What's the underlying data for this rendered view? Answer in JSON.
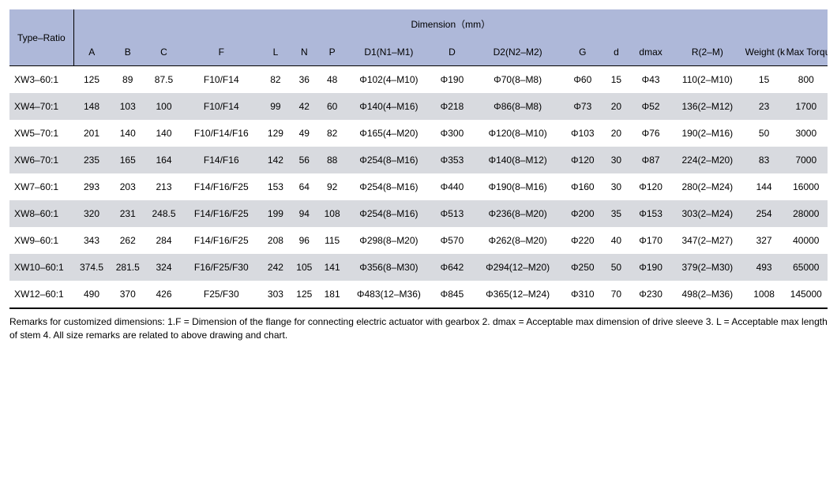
{
  "header": {
    "type_ratio": "Type–Ratio",
    "dimension_group": "Dimension（mm）",
    "cols": {
      "A": "A",
      "B": "B",
      "C": "C",
      "F": "F",
      "L": "L",
      "N": "N",
      "P": "P",
      "D1": "D1(N1–M1)",
      "D": "D",
      "D2": "D2(N2–M2)",
      "G": "G",
      "d_small": "d",
      "dmax": "dmax",
      "R": "R(2–M)",
      "Weight": "Weight (kg)",
      "Torque": "Max Torque (Nm)"
    }
  },
  "rows": [
    {
      "type": "XW3–60:1",
      "A": "125",
      "B": "89",
      "C": "87.5",
      "F": "F10/F14",
      "L": "82",
      "N": "36",
      "P": "48",
      "D1": "Φ102(4–M10)",
      "D": "Φ190",
      "D2": "Φ70(8–M8)",
      "G": "Φ60",
      "d": "15",
      "dmax": "Φ43",
      "R": "110(2–M10)",
      "Weight": "15",
      "Torque": "800"
    },
    {
      "type": "XW4–70:1",
      "A": "148",
      "B": "103",
      "C": "100",
      "F": "F10/F14",
      "L": "99",
      "N": "42",
      "P": "60",
      "D1": "Φ140(4–M16)",
      "D": "Φ218",
      "D2": "Φ86(8–M8)",
      "G": "Φ73",
      "d": "20",
      "dmax": "Φ52",
      "R": "136(2–M12)",
      "Weight": "23",
      "Torque": "1700"
    },
    {
      "type": "XW5–70:1",
      "A": "201",
      "B": "140",
      "C": "140",
      "F": "F10/F14/F16",
      "L": "129",
      "N": "49",
      "P": "82",
      "D1": "Φ165(4–M20)",
      "D": "Φ300",
      "D2": "Φ120(8–M10)",
      "G": "Φ103",
      "d": "20",
      "dmax": "Φ76",
      "R": "190(2–M16)",
      "Weight": "50",
      "Torque": "3000"
    },
    {
      "type": "XW6–70:1",
      "A": "235",
      "B": "165",
      "C": "164",
      "F": "F14/F16",
      "L": "142",
      "N": "56",
      "P": "88",
      "D1": "Φ254(8–M16)",
      "D": "Φ353",
      "D2": "Φ140(8–M12)",
      "G": "Φ120",
      "d": "30",
      "dmax": "Φ87",
      "R": "224(2–M20)",
      "Weight": "83",
      "Torque": "7000"
    },
    {
      "type": "XW7–60:1",
      "A": "293",
      "B": "203",
      "C": "213",
      "F": "F14/F16/F25",
      "L": "153",
      "N": "64",
      "P": "92",
      "D1": "Φ254(8–M16)",
      "D": "Φ440",
      "D2": "Φ190(8–M16)",
      "G": "Φ160",
      "d": "30",
      "dmax": "Φ120",
      "R": "280(2–M24)",
      "Weight": "144",
      "Torque": "16000"
    },
    {
      "type": "XW8–60:1",
      "A": "320",
      "B": "231",
      "C": "248.5",
      "F": "F14/F16/F25",
      "L": "199",
      "N": "94",
      "P": "108",
      "D1": "Φ254(8–M16)",
      "D": "Φ513",
      "D2": "Φ236(8–M20)",
      "G": "Φ200",
      "d": "35",
      "dmax": "Φ153",
      "R": "303(2–M24)",
      "Weight": "254",
      "Torque": "28000"
    },
    {
      "type": "XW9–60:1",
      "A": "343",
      "B": "262",
      "C": "284",
      "F": "F14/F16/F25",
      "L": "208",
      "N": "96",
      "P": "115",
      "D1": "Φ298(8–M20)",
      "D": "Φ570",
      "D2": "Φ262(8–M20)",
      "G": "Φ220",
      "d": "40",
      "dmax": "Φ170",
      "R": "347(2–M27)",
      "Weight": "327",
      "Torque": "40000"
    },
    {
      "type": "XW10–60:1",
      "A": "374.5",
      "B": "281.5",
      "C": "324",
      "F": "F16/F25/F30",
      "L": "242",
      "N": "105",
      "P": "141",
      "D1": "Φ356(8–M30)",
      "D": "Φ642",
      "D2": "Φ294(12–M20)",
      "G": "Φ250",
      "d": "50",
      "dmax": "Φ190",
      "R": "379(2–M30)",
      "Weight": "493",
      "Torque": "65000"
    },
    {
      "type": "XW12–60:1",
      "A": "490",
      "B": "370",
      "C": "426",
      "F": "F25/F30",
      "L": "303",
      "N": "125",
      "P": "181",
      "D1": "Φ483(12–M36)",
      "D": "Φ845",
      "D2": "Φ365(12–M24)",
      "G": "Φ310",
      "d": "70",
      "dmax": "Φ230",
      "R": "498(2–M36)",
      "Weight": "1008",
      "Torque": "145000"
    }
  ],
  "remarks": "Remarks for customized dimensions: 1.F = Dimension of the flange for connecting electric actuator with gearbox   2. dmax = Acceptable max dimension of drive sleeve    3. L = Acceptable max length of stem    4. All size remarks are related to above drawing and chart."
}
